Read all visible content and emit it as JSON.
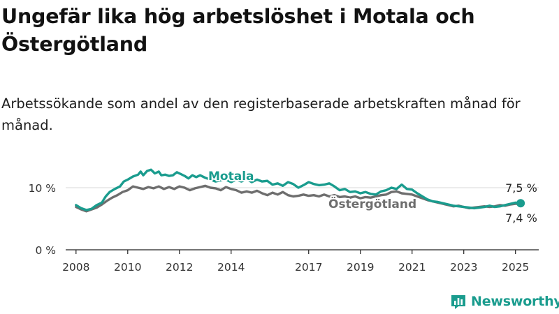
{
  "title": "Ungefär lika hög arbetslöshet i Motala och Östergötland",
  "subtitle": "Arbetssökande som andel av den registerbaserade arbetskraften månad för månad.",
  "brand": "Newsworthy",
  "colors": {
    "motala": "#1a9c8e",
    "ostergotland": "#6e6e6e",
    "axis": "#222222",
    "grid": "#d9d9d9",
    "brand": "#1a9c8e"
  },
  "chart_data": {
    "type": "line",
    "x_unit": "year",
    "xlim": [
      2007.6,
      2025.9
    ],
    "ylim": [
      0,
      12.5
    ],
    "y_ticks": [
      {
        "value": 0,
        "label": "0 %"
      },
      {
        "value": 10,
        "label": "10 %"
      }
    ],
    "x_ticks": [
      {
        "value": 2008,
        "label": "2008"
      },
      {
        "value": 2010,
        "label": "2010"
      },
      {
        "value": 2012,
        "label": "2012"
      },
      {
        "value": 2014,
        "label": "2014"
      },
      {
        "value": 2017,
        "label": "2017"
      },
      {
        "value": 2019,
        "label": "2019"
      },
      {
        "value": 2021,
        "label": "2021"
      },
      {
        "value": 2023,
        "label": "2023"
      },
      {
        "value": 2025,
        "label": "2025"
      }
    ],
    "series": [
      {
        "name": "Motala",
        "end_label": "7,5 %",
        "points": [
          [
            2008.0,
            7.2
          ],
          [
            2008.2,
            6.7
          ],
          [
            2008.4,
            6.4
          ],
          [
            2008.6,
            6.6
          ],
          [
            2008.8,
            7.2
          ],
          [
            2009.0,
            7.6
          ],
          [
            2009.15,
            8.6
          ],
          [
            2009.3,
            9.3
          ],
          [
            2009.5,
            9.8
          ],
          [
            2009.7,
            10.2
          ],
          [
            2009.85,
            11.0
          ],
          [
            2010.0,
            11.3
          ],
          [
            2010.2,
            11.8
          ],
          [
            2010.4,
            12.1
          ],
          [
            2010.5,
            12.6
          ],
          [
            2010.6,
            12.0
          ],
          [
            2010.75,
            12.7
          ],
          [
            2010.9,
            12.9
          ],
          [
            2011.05,
            12.3
          ],
          [
            2011.2,
            12.6
          ],
          [
            2011.3,
            12.0
          ],
          [
            2011.45,
            12.1
          ],
          [
            2011.6,
            11.9
          ],
          [
            2011.75,
            12.0
          ],
          [
            2011.9,
            12.5
          ],
          [
            2012.05,
            12.2
          ],
          [
            2012.2,
            11.9
          ],
          [
            2012.35,
            11.5
          ],
          [
            2012.5,
            12.0
          ],
          [
            2012.65,
            11.7
          ],
          [
            2012.8,
            12.0
          ],
          [
            2013.0,
            11.6
          ],
          [
            2013.2,
            11.3
          ],
          [
            2013.4,
            11.0
          ],
          [
            2013.6,
            11.2
          ],
          [
            2013.8,
            11.3
          ],
          [
            2014.0,
            10.9
          ],
          [
            2014.2,
            11.3
          ],
          [
            2014.4,
            11.0
          ],
          [
            2014.6,
            11.4
          ],
          [
            2014.8,
            10.9
          ],
          [
            2015.0,
            11.3
          ],
          [
            2015.2,
            11.0
          ],
          [
            2015.4,
            11.1
          ],
          [
            2015.6,
            10.5
          ],
          [
            2015.8,
            10.7
          ],
          [
            2016.0,
            10.3
          ],
          [
            2016.2,
            10.9
          ],
          [
            2016.4,
            10.6
          ],
          [
            2016.6,
            10.0
          ],
          [
            2016.8,
            10.4
          ],
          [
            2017.0,
            10.9
          ],
          [
            2017.2,
            10.6
          ],
          [
            2017.4,
            10.4
          ],
          [
            2017.6,
            10.5
          ],
          [
            2017.8,
            10.7
          ],
          [
            2018.0,
            10.2
          ],
          [
            2018.2,
            9.6
          ],
          [
            2018.4,
            9.8
          ],
          [
            2018.6,
            9.3
          ],
          [
            2018.8,
            9.4
          ],
          [
            2019.0,
            9.1
          ],
          [
            2019.2,
            9.3
          ],
          [
            2019.4,
            9.0
          ],
          [
            2019.6,
            8.9
          ],
          [
            2019.8,
            9.4
          ],
          [
            2020.0,
            9.6
          ],
          [
            2020.2,
            10.0
          ],
          [
            2020.4,
            9.8
          ],
          [
            2020.6,
            10.5
          ],
          [
            2020.8,
            9.8
          ],
          [
            2021.0,
            9.7
          ],
          [
            2021.2,
            9.1
          ],
          [
            2021.4,
            8.6
          ],
          [
            2021.6,
            8.1
          ],
          [
            2021.8,
            7.8
          ],
          [
            2022.0,
            7.7
          ],
          [
            2022.2,
            7.5
          ],
          [
            2022.4,
            7.3
          ],
          [
            2022.6,
            7.1
          ],
          [
            2022.8,
            7.0
          ],
          [
            2023.0,
            6.9
          ],
          [
            2023.2,
            6.8
          ],
          [
            2023.4,
            6.7
          ],
          [
            2023.6,
            6.8
          ],
          [
            2023.8,
            6.9
          ],
          [
            2024.0,
            7.1
          ],
          [
            2024.2,
            6.9
          ],
          [
            2024.4,
            7.0
          ],
          [
            2024.6,
            7.2
          ],
          [
            2024.8,
            7.4
          ],
          [
            2025.0,
            7.6
          ],
          [
            2025.2,
            7.5
          ]
        ]
      },
      {
        "name": "Östergötland",
        "end_label": "7,4 %",
        "points": [
          [
            2008.0,
            6.9
          ],
          [
            2008.2,
            6.5
          ],
          [
            2008.4,
            6.2
          ],
          [
            2008.6,
            6.5
          ],
          [
            2008.8,
            6.8
          ],
          [
            2009.0,
            7.3
          ],
          [
            2009.2,
            7.9
          ],
          [
            2009.4,
            8.4
          ],
          [
            2009.6,
            8.8
          ],
          [
            2009.8,
            9.3
          ],
          [
            2010.0,
            9.6
          ],
          [
            2010.2,
            10.2
          ],
          [
            2010.4,
            10.0
          ],
          [
            2010.6,
            9.8
          ],
          [
            2010.8,
            10.1
          ],
          [
            2011.0,
            9.9
          ],
          [
            2011.2,
            10.2
          ],
          [
            2011.4,
            9.8
          ],
          [
            2011.6,
            10.1
          ],
          [
            2011.8,
            9.8
          ],
          [
            2012.0,
            10.2
          ],
          [
            2012.2,
            10.0
          ],
          [
            2012.4,
            9.6
          ],
          [
            2012.6,
            9.9
          ],
          [
            2012.8,
            10.1
          ],
          [
            2013.0,
            10.3
          ],
          [
            2013.2,
            10.0
          ],
          [
            2013.4,
            9.9
          ],
          [
            2013.6,
            9.6
          ],
          [
            2013.8,
            10.1
          ],
          [
            2014.0,
            9.8
          ],
          [
            2014.2,
            9.6
          ],
          [
            2014.4,
            9.2
          ],
          [
            2014.6,
            9.4
          ],
          [
            2014.8,
            9.2
          ],
          [
            2015.0,
            9.5
          ],
          [
            2015.2,
            9.1
          ],
          [
            2015.4,
            8.8
          ],
          [
            2015.6,
            9.2
          ],
          [
            2015.8,
            8.9
          ],
          [
            2016.0,
            9.3
          ],
          [
            2016.2,
            8.8
          ],
          [
            2016.4,
            8.6
          ],
          [
            2016.6,
            8.7
          ],
          [
            2016.8,
            8.9
          ],
          [
            2017.0,
            8.7
          ],
          [
            2017.2,
            8.8
          ],
          [
            2017.4,
            8.6
          ],
          [
            2017.6,
            8.9
          ],
          [
            2017.8,
            8.6
          ],
          [
            2018.0,
            8.8
          ],
          [
            2018.2,
            8.5
          ],
          [
            2018.4,
            8.6
          ],
          [
            2018.6,
            8.4
          ],
          [
            2018.8,
            8.6
          ],
          [
            2019.0,
            8.3
          ],
          [
            2019.2,
            8.5
          ],
          [
            2019.4,
            8.4
          ],
          [
            2019.6,
            8.6
          ],
          [
            2019.8,
            8.8
          ],
          [
            2020.0,
            8.9
          ],
          [
            2020.2,
            9.3
          ],
          [
            2020.4,
            9.4
          ],
          [
            2020.6,
            9.1
          ],
          [
            2020.8,
            9.0
          ],
          [
            2021.0,
            8.9
          ],
          [
            2021.2,
            8.6
          ],
          [
            2021.4,
            8.3
          ],
          [
            2021.6,
            8.0
          ],
          [
            2021.8,
            7.8
          ],
          [
            2022.0,
            7.6
          ],
          [
            2022.2,
            7.4
          ],
          [
            2022.4,
            7.2
          ],
          [
            2022.6,
            7.0
          ],
          [
            2022.8,
            7.1
          ],
          [
            2023.0,
            6.9
          ],
          [
            2023.2,
            6.7
          ],
          [
            2023.4,
            6.8
          ],
          [
            2023.6,
            6.9
          ],
          [
            2023.8,
            7.0
          ],
          [
            2024.0,
            6.9
          ],
          [
            2024.2,
            7.0
          ],
          [
            2024.4,
            7.2
          ],
          [
            2024.6,
            7.1
          ],
          [
            2024.8,
            7.3
          ],
          [
            2025.0,
            7.4
          ],
          [
            2025.2,
            7.4
          ]
        ]
      }
    ]
  }
}
